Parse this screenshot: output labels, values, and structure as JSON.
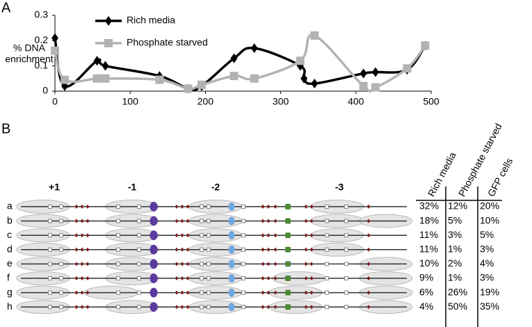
{
  "chart_data": {
    "type": "line",
    "panel_label": "A",
    "ylabel": [
      "% DNA",
      "enrichment"
    ],
    "xlim": [
      0,
      500
    ],
    "xticks": [
      0,
      100,
      200,
      300,
      400,
      500
    ],
    "ylim": [
      0,
      0.3
    ],
    "yticks": [
      0,
      0.1,
      0.2,
      0.3
    ],
    "legend": "top",
    "series": [
      {
        "name": "Rich media",
        "color": "#000000",
        "marker": "diamond",
        "x": [
          0,
          13,
          56,
          67,
          139,
          177,
          195,
          238,
          265,
          326,
          331,
          345,
          410,
          426,
          468,
          492
        ],
        "values": [
          0.21,
          0.02,
          0.12,
          0.1,
          0.06,
          0.01,
          0.02,
          0.13,
          0.17,
          0.1,
          0.05,
          0.03,
          0.07,
          0.075,
          0.085,
          0.18
        ]
      },
      {
        "name": "Phosphate starved",
        "color": "#b3b3b3",
        "marker": "square",
        "x": [
          0,
          13,
          56,
          67,
          139,
          177,
          195,
          238,
          265,
          326,
          345,
          410,
          426,
          468,
          492
        ],
        "values": [
          0.16,
          0.045,
          0.05,
          0.05,
          0.045,
          0.01,
          0.025,
          0.06,
          0.05,
          0.12,
          0.22,
          0.02,
          0.015,
          0.09,
          0.18
        ]
      }
    ]
  },
  "panel_b": {
    "label": "B",
    "nucleosomes": [
      "+1",
      "-1",
      "-2",
      "-3"
    ],
    "columns": [
      "Rich media",
      "Phosphate starved",
      "GFP cells"
    ],
    "rows": [
      {
        "label": "a",
        "values": [
          "32%",
          "12%",
          "20%"
        ]
      },
      {
        "label": "b",
        "values": [
          "18%",
          "5%",
          "10%"
        ]
      },
      {
        "label": "c",
        "values": [
          "11%",
          "3%",
          "5%"
        ]
      },
      {
        "label": "d",
        "values": [
          "11%",
          "1%",
          "3%"
        ]
      },
      {
        "label": "e",
        "values": [
          "10%",
          "2%",
          "4%"
        ]
      },
      {
        "label": "f",
        "values": [
          "9%",
          "1%",
          "3%"
        ]
      },
      {
        "label": "g",
        "values": [
          "6%",
          "26%",
          "19%"
        ]
      },
      {
        "label": "h",
        "values": [
          "4%",
          "50%",
          "35%"
        ]
      }
    ]
  }
}
